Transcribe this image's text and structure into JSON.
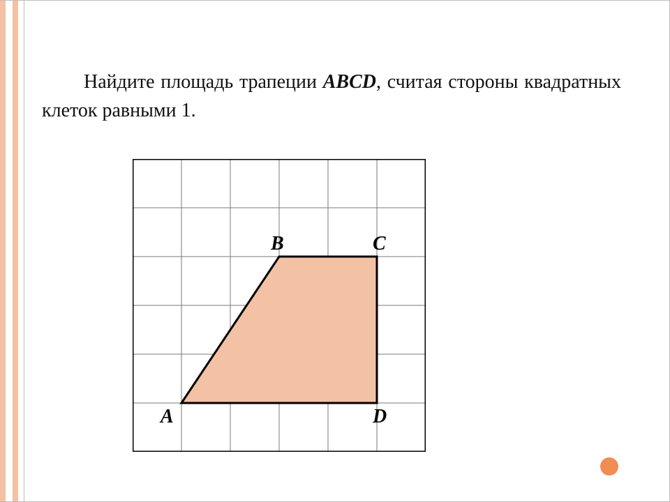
{
  "problem": {
    "line1": "Найдите площадь трапеции ",
    "emph": "ABCD",
    "line1_after": ", считая стороны квадратных клеток равными 1."
  },
  "diagram": {
    "type": "grid-figure",
    "grid": {
      "cols": 6,
      "rows": 6,
      "cell": 70,
      "outer_border_color": "#000000",
      "outer_border_width": 3,
      "inner_line_color": "#7a7a7a",
      "inner_line_width": 1
    },
    "trapezoid": {
      "fill": "#f3c1a3",
      "stroke": "#000000",
      "stroke_width": 3,
      "vertices_grid": {
        "A": [
          1,
          5
        ],
        "B": [
          3,
          2
        ],
        "C": [
          5,
          2
        ],
        "D": [
          5,
          5
        ]
      }
    },
    "labels": {
      "A": "A",
      "B": "B",
      "C": "C",
      "D": "D",
      "fontsize": 28
    }
  },
  "decor": {
    "left_stripe_outer": "#f3c1a3",
    "left_stripe_inner": "#ffffff",
    "border_line_color": "#bdbdbd",
    "dot_color": "#ef8d52"
  }
}
